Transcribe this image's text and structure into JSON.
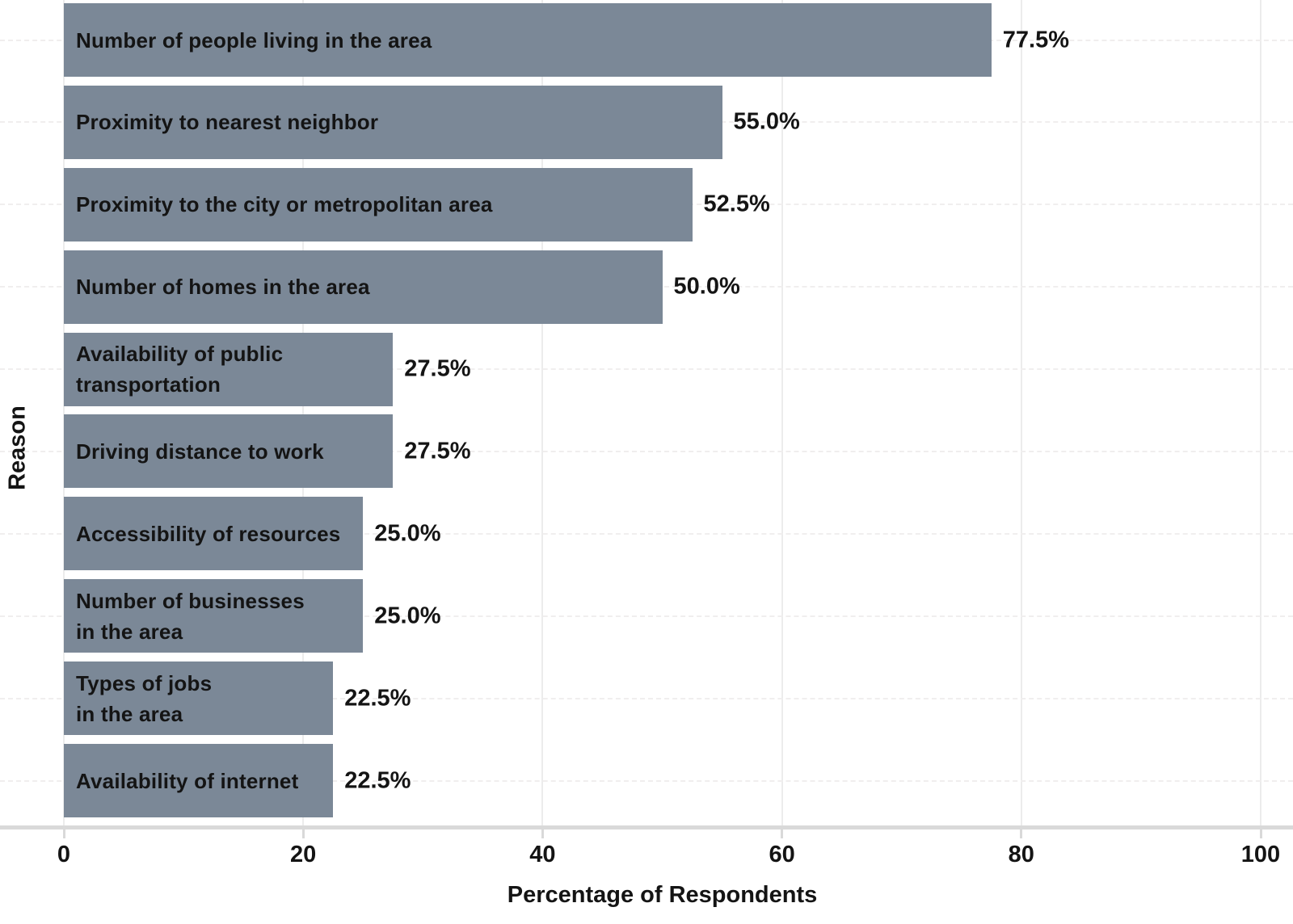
{
  "chart_data": {
    "type": "bar",
    "orientation": "horizontal",
    "title": "",
    "xlabel": "Percentage of Respondents",
    "ylabel": "Reason",
    "categories": [
      "Number of people living in the area",
      "Proximity to nearest neighbor",
      "Proximity to the city or metropolitan area",
      "Number of homes in the area",
      "Availability of public\ntransportation",
      "Driving distance to work",
      "Accessibility of resources",
      "Number of businesses\nin the area",
      "Types of jobs\nin the area",
      "Availability of internet"
    ],
    "values": [
      77.5,
      55.0,
      52.5,
      50.0,
      27.5,
      27.5,
      25.0,
      25.0,
      22.5,
      22.5
    ],
    "value_labels": [
      "77.5%",
      "55.0%",
      "52.5%",
      "50.0%",
      "27.5%",
      "27.5%",
      "25.0%",
      "25.0%",
      "22.5%",
      "22.5%"
    ],
    "x_ticks": [
      0,
      20,
      40,
      60,
      80,
      100
    ],
    "x_tick_labels": [
      "0",
      "20",
      "40",
      "60",
      "80",
      "100"
    ],
    "xlim": [
      0,
      100
    ],
    "grid": "vertical-major",
    "legend": "none",
    "bar_color": "#7B8897",
    "text_color": "#141414"
  }
}
